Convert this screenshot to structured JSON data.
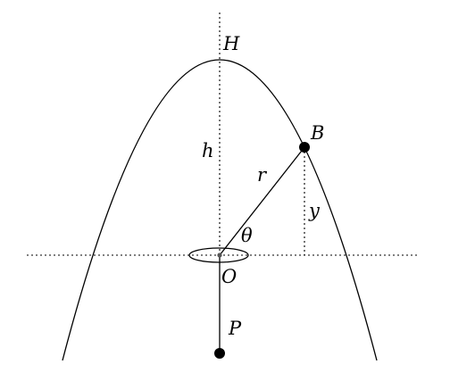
{
  "labels": {
    "H": "H",
    "B": "B",
    "h": "h",
    "r": "r",
    "y": "y",
    "theta": "θ",
    "O": "O",
    "P": "P"
  }
}
